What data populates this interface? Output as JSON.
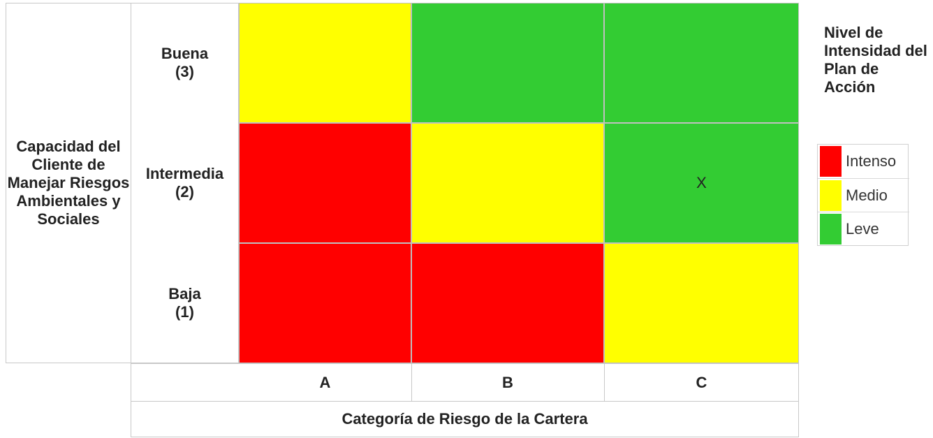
{
  "chart_data": {
    "type": "heatmap",
    "title": "",
    "ylabel": "Capacidad del Cliente de Manejar Riesgos Ambientales y Sociales",
    "xlabel": "Categoría de Riesgo de la Cartera",
    "x_categories": [
      "A",
      "B",
      "C"
    ],
    "y_categories": [
      "Buena\n(3)",
      "Intermedia\n(2)",
      "Baja\n(1)"
    ],
    "cells": [
      [
        "Medio",
        "Leve",
        "Leve"
      ],
      [
        "Intenso",
        "Medio",
        "Leve"
      ],
      [
        "Intenso",
        "Intenso",
        "Medio"
      ]
    ],
    "marker": {
      "row": 1,
      "col": 2,
      "text": "X"
    },
    "legend": {
      "title": "Nivel de Intensidad del Plan de Acción",
      "placement": "right",
      "items": [
        {
          "label": "Intenso",
          "color": "#ff0000"
        },
        {
          "label": "Medio",
          "color": "#ffff00"
        },
        {
          "label": "Leve",
          "color": "#33cc33"
        }
      ]
    }
  }
}
